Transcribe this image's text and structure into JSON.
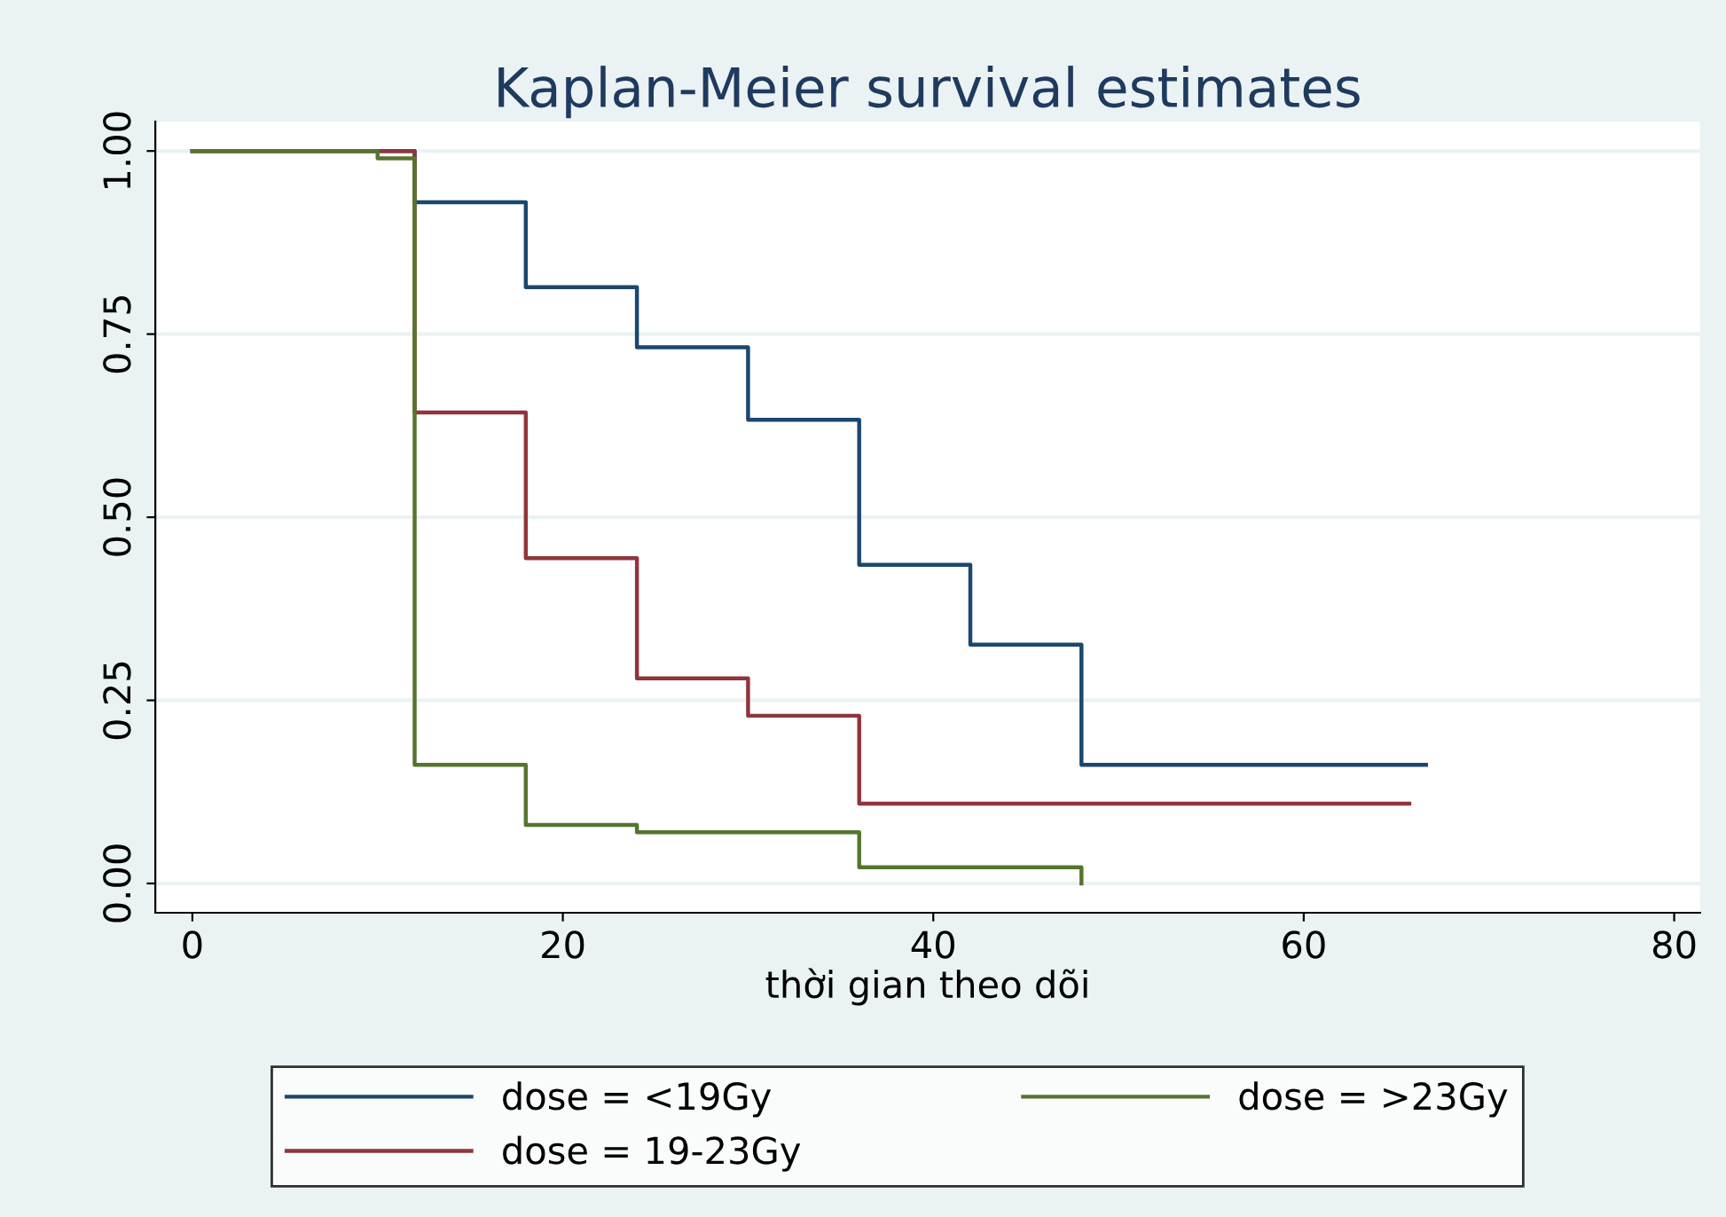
{
  "chart_data": {
    "type": "step",
    "title": "Kaplan-Meier survival estimates",
    "xlabel": "thời gian theo dõi",
    "series": [
      {
        "name": "dose = <19Gy",
        "color": "#1a476f",
        "x": [
          0,
          12,
          18,
          24,
          30,
          36,
          42,
          48,
          66.6
        ],
        "values": [
          1.0,
          0.93,
          0.814,
          0.732,
          0.633,
          0.435,
          0.326,
          0.162,
          0.162
        ]
      },
      {
        "name": "dose = 19-23Gy",
        "color": "#90353b",
        "x": [
          0,
          12,
          18,
          24,
          30,
          36,
          65.7
        ],
        "values": [
          1.0,
          0.643,
          0.444,
          0.28,
          0.229,
          0.109,
          0.109
        ]
      },
      {
        "name": "dose = >23Gy",
        "color": "#55752f",
        "x": [
          0,
          10,
          12,
          18,
          24,
          36,
          48
        ],
        "values": [
          1.0,
          0.99,
          0.162,
          0.08,
          0.07,
          0.022,
          0.0
        ]
      }
    ],
    "xlim": [
      -2,
      81.4
    ],
    "ylim": [
      -0.04,
      1.04
    ],
    "xticks": [
      0,
      20,
      40,
      60,
      80
    ],
    "yticks": [
      {
        "value": 0,
        "label": "0.00"
      },
      {
        "value": 0.25,
        "label": "0.25"
      },
      {
        "value": 0.5,
        "label": "0.50"
      },
      {
        "value": 0.75,
        "label": "0.75"
      },
      {
        "value": 1,
        "label": "1.00"
      }
    ],
    "grid": "y",
    "legend": "bottom",
    "marker": "none",
    "line_style": "solid"
  }
}
